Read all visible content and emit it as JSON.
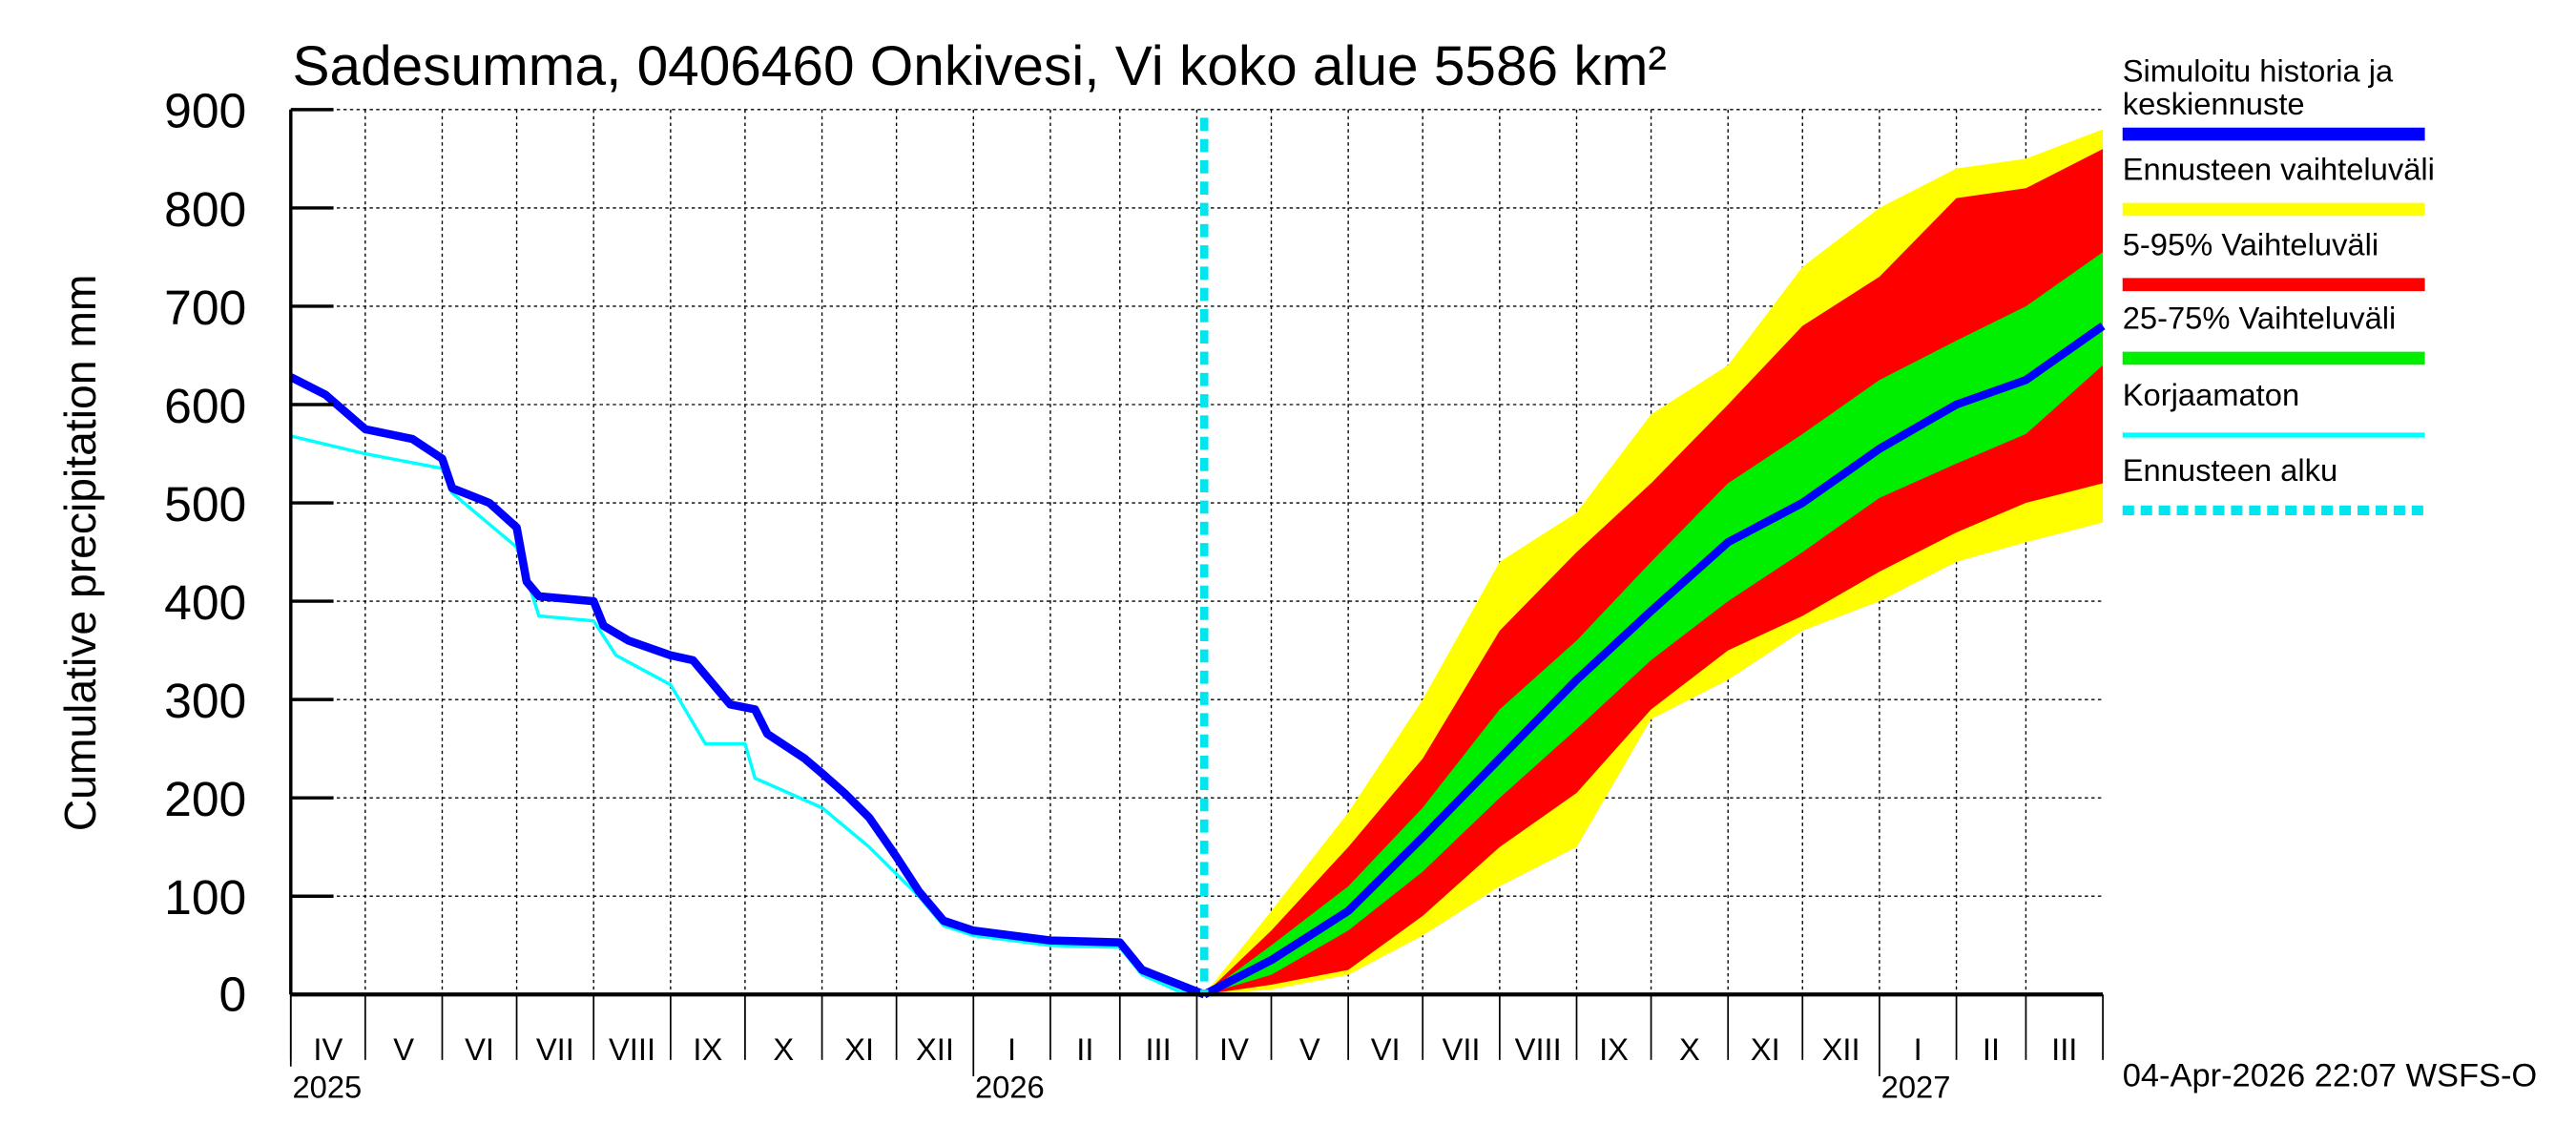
{
  "chart_data": {
    "type": "area",
    "title": "Sadesumma, 0406460 Onkivesi, Vi koko alue 5586 km²",
    "ylabel": "Cumulative precipitation   mm",
    "xlabel": "",
    "ylim": [
      0,
      900
    ],
    "yticks": [
      0,
      100,
      200,
      300,
      400,
      500,
      600,
      700,
      800,
      900
    ],
    "xlim": [
      "2025-04-01",
      "2027-04-01"
    ],
    "grid": true,
    "legend_placement": "right",
    "month_labels": [
      "IV",
      "V",
      "VI",
      "VII",
      "VIII",
      "IX",
      "X",
      "XI",
      "XII",
      "I",
      "II",
      "III",
      "IV",
      "V",
      "VI",
      "VII",
      "VIII",
      "IX",
      "X",
      "XI",
      "XII",
      "I",
      "II",
      "III"
    ],
    "year_labels": [
      {
        "year": "2025",
        "date": "2025-04-01"
      },
      {
        "year": "2026",
        "date": "2026-01-01"
      },
      {
        "year": "2027",
        "date": "2027-01-01"
      }
    ],
    "forecast_start": "2026-04-04",
    "footer": "04-Apr-2026 22:07 WSFS-O",
    "colors": {
      "simulated": "#0000ff",
      "range": "#ffff00",
      "p5_95": "#ff0000",
      "p25_75": "#00ee00",
      "uncorrected": "#00ffff",
      "forecast_start": "#00e5ee"
    },
    "legend": [
      {
        "label": "Simuloitu historia ja keskiennuste",
        "line1": "Simuloitu historia ja",
        "line2": "keskiennuste",
        "color": "#0000ff",
        "style": "solid"
      },
      {
        "label": "Ennusteen vaihteluväli",
        "color": "#ffff00",
        "style": "solid"
      },
      {
        "label": "5-95% Vaihteluväli",
        "color": "#ff0000",
        "style": "solid"
      },
      {
        "label": "25-75% Vaihteluväli",
        "color": "#00ee00",
        "style": "solid"
      },
      {
        "label": "Korjaamaton",
        "color": "#00ffff",
        "style": "thin"
      },
      {
        "label": "Ennusteen alku",
        "color": "#00e5ee",
        "style": "dotted"
      }
    ],
    "history_simulated": [
      [
        "2025-04-01",
        628
      ],
      [
        "2025-04-15",
        610
      ],
      [
        "2025-05-01",
        575
      ],
      [
        "2025-05-20",
        565
      ],
      [
        "2025-06-01",
        545
      ],
      [
        "2025-06-05",
        515
      ],
      [
        "2025-06-20",
        500
      ],
      [
        "2025-07-01",
        475
      ],
      [
        "2025-07-05",
        420
      ],
      [
        "2025-07-10",
        405
      ],
      [
        "2025-08-01",
        400
      ],
      [
        "2025-08-05",
        375
      ],
      [
        "2025-08-15",
        360
      ],
      [
        "2025-09-01",
        345
      ],
      [
        "2025-09-10",
        340
      ],
      [
        "2025-09-25",
        295
      ],
      [
        "2025-10-05",
        290
      ],
      [
        "2025-10-10",
        265
      ],
      [
        "2025-10-25",
        240
      ],
      [
        "2025-11-01",
        225
      ],
      [
        "2025-11-10",
        205
      ],
      [
        "2025-11-20",
        180
      ],
      [
        "2025-12-01",
        140
      ],
      [
        "2025-12-10",
        105
      ],
      [
        "2025-12-20",
        75
      ],
      [
        "2026-01-01",
        65
      ],
      [
        "2026-02-01",
        55
      ],
      [
        "2026-03-01",
        53
      ],
      [
        "2026-03-10",
        25
      ],
      [
        "2026-03-25",
        10
      ],
      [
        "2026-04-04",
        0
      ]
    ],
    "history_uncorrected": [
      [
        "2025-04-01",
        568
      ],
      [
        "2025-05-01",
        550
      ],
      [
        "2025-06-01",
        535
      ],
      [
        "2025-06-05",
        510
      ],
      [
        "2025-07-01",
        455
      ],
      [
        "2025-07-10",
        385
      ],
      [
        "2025-08-01",
        380
      ],
      [
        "2025-08-10",
        345
      ],
      [
        "2025-09-01",
        315
      ],
      [
        "2025-09-15",
        255
      ],
      [
        "2025-10-01",
        255
      ],
      [
        "2025-10-05",
        220
      ],
      [
        "2025-11-01",
        190
      ],
      [
        "2025-11-20",
        150
      ],
      [
        "2025-12-10",
        100
      ],
      [
        "2025-12-20",
        70
      ],
      [
        "2026-01-01",
        60
      ],
      [
        "2026-02-01",
        50
      ],
      [
        "2026-03-01",
        48
      ],
      [
        "2026-03-10",
        20
      ],
      [
        "2026-03-25",
        3
      ],
      [
        "2026-04-04",
        0
      ]
    ],
    "forecast": {
      "dates": [
        "2026-04-04",
        "2026-05-01",
        "2026-06-01",
        "2026-07-01",
        "2026-08-01",
        "2026-09-01",
        "2026-10-01",
        "2026-11-01",
        "2026-12-01",
        "2027-01-01",
        "2027-02-01",
        "2027-03-01",
        "2027-04-01"
      ],
      "mean": [
        0,
        35,
        85,
        160,
        240,
        320,
        390,
        460,
        500,
        555,
        600,
        625,
        680
      ],
      "p25": [
        0,
        20,
        65,
        125,
        200,
        270,
        340,
        400,
        450,
        505,
        540,
        570,
        640
      ],
      "p75": [
        0,
        50,
        110,
        190,
        290,
        360,
        440,
        520,
        570,
        625,
        665,
        700,
        755
      ],
      "p5": [
        0,
        10,
        25,
        80,
        150,
        205,
        290,
        350,
        385,
        430,
        470,
        500,
        520
      ],
      "p95": [
        0,
        65,
        150,
        240,
        370,
        450,
        520,
        600,
        680,
        730,
        810,
        820,
        860
      ],
      "min": [
        0,
        5,
        20,
        60,
        110,
        150,
        280,
        320,
        370,
        400,
        440,
        460,
        480
      ],
      "max": [
        0,
        85,
        185,
        300,
        440,
        490,
        590,
        640,
        740,
        800,
        840,
        850,
        880
      ]
    }
  }
}
